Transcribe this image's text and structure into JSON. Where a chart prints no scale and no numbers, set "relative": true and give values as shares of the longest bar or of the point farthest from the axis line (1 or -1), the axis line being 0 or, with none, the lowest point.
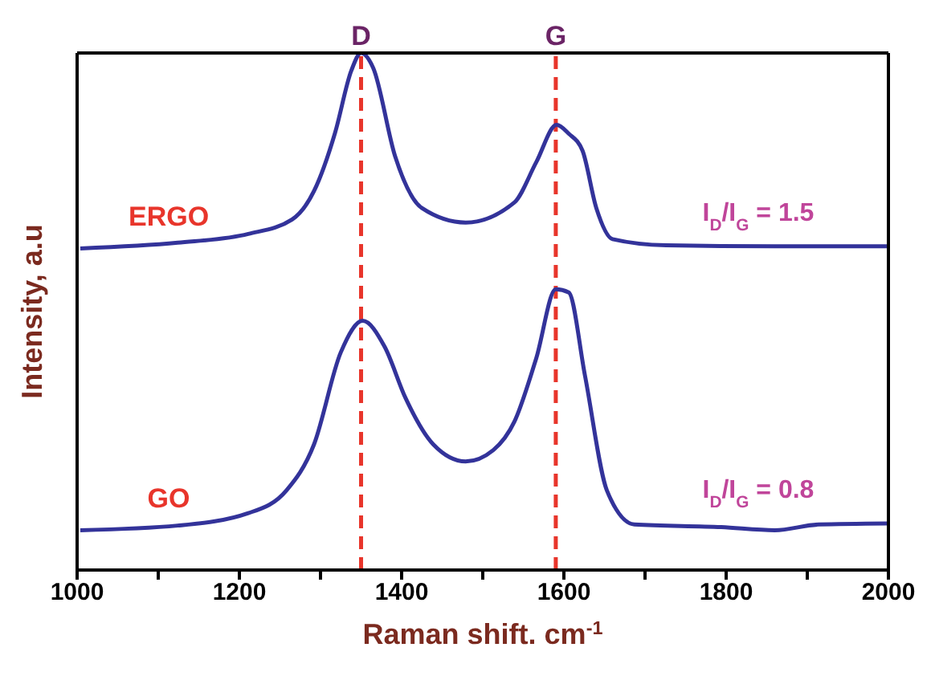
{
  "chart_data": {
    "type": "line",
    "relative": true,
    "xlabel": "Raman shift. cm$^{-1}$",
    "ylabel": "Intensity, a.u",
    "xlim": [
      1000,
      2000
    ],
    "xticks": [
      1000,
      {
        "value": 1100,
        "label": null
      },
      1200,
      {
        "value": 1300,
        "label": null
      },
      1400,
      {
        "value": 1500,
        "label": null
      },
      1600,
      {
        "value": 1700,
        "label": null
      },
      1800,
      {
        "value": 1900,
        "label": null
      },
      2000
    ],
    "marker": "none",
    "line_style": "solid",
    "series": [
      {
        "name": "ERGO",
        "color": "#33339a",
        "x": [
          1004,
          1124,
          1211,
          1265,
          1292,
          1318,
          1338,
          1350,
          1365,
          1392,
          1425,
          1479,
          1539,
          1566,
          1591,
          1606,
          1623,
          1640,
          1660,
          1726,
          1860,
          1998
        ],
        "values": [
          0.622,
          0.633,
          0.65,
          0.678,
          0.733,
          0.846,
          0.966,
          1,
          0.971,
          0.8,
          0.7,
          0.672,
          0.711,
          0.789,
          0.861,
          0.844,
          0.811,
          0.7,
          0.64,
          0.628,
          0.626,
          0.626
        ]
      },
      {
        "name": "GO",
        "color": "#33339a",
        "x": [
          1004,
          1124,
          1211,
          1258,
          1292,
          1325,
          1352,
          1379,
          1405,
          1439,
          1479,
          1513,
          1539,
          1566,
          1590,
          1606,
          1626,
          1653,
          1687,
          1794,
          1860,
          1914,
          1998
        ],
        "values": [
          0.077,
          0.086,
          0.11,
          0.154,
          0.243,
          0.421,
          0.482,
          0.432,
          0.332,
          0.243,
          0.21,
          0.232,
          0.287,
          0.41,
          0.543,
          0.537,
          0.376,
          0.154,
          0.088,
          0.083,
          0.077,
          0.088,
          0.09
        ]
      }
    ],
    "ref_lines": [
      {
        "axis": "x",
        "value": 1350,
        "label": "D",
        "color": "#e8352b",
        "line_style": "dashed"
      },
      {
        "axis": "x",
        "value": 1590,
        "label": "G",
        "color": "#e8352b",
        "line_style": "dashed"
      }
    ],
    "annotations": [
      "I$_{D}$/I$_{G}$ = 1.5",
      "I$_{D}$/I$_{G}$ = 0.8"
    ]
  }
}
